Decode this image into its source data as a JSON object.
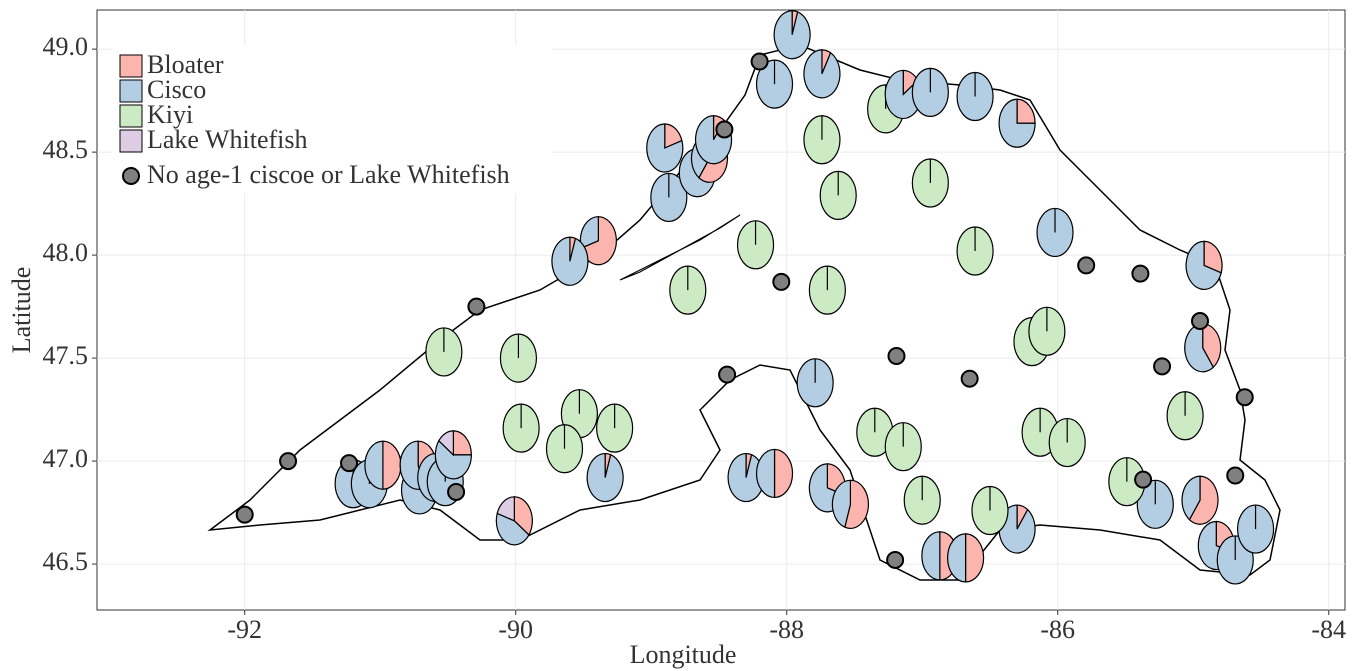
{
  "chart_data": {
    "type": "scatter-pie",
    "x_label": "Longitude",
    "y_label": "Latitude",
    "xlim": [
      -93.09,
      -83.88
    ],
    "ylim": [
      46.277,
      49.19
    ],
    "xticks": [
      -92,
      -90,
      -88,
      -86,
      -84
    ],
    "yticks": [
      46.5,
      {
        "value": 47,
        "label": "47.0"
      },
      47.5,
      {
        "value": 48,
        "label": "48.0"
      },
      48.5,
      {
        "value": 49,
        "label": "49.0"
      }
    ],
    "grid": true,
    "series": [
      {
        "name": "Bloater",
        "color": "#fbb4ae"
      },
      {
        "name": "Cisco",
        "color": "#b3cde3"
      },
      {
        "name": "Kiyi",
        "color": "#ccebc5"
      },
      {
        "name": "Lake Whitefish",
        "color": "#decbe4"
      }
    ],
    "pies": [
      {
        "x": -88.09,
        "y": 48.83,
        "values": [
          0,
          100,
          0,
          0
        ]
      },
      {
        "x": -87.96,
        "y": 49.07,
        "values": [
          5,
          95,
          0,
          0
        ]
      },
      {
        "x": -87.74,
        "y": 48.88,
        "values": [
          8,
          92,
          0,
          0
        ]
      },
      {
        "x": -87.27,
        "y": 48.71,
        "values": [
          0,
          0,
          100,
          0
        ]
      },
      {
        "x": -87.14,
        "y": 48.78,
        "values": [
          15,
          85,
          0,
          0
        ]
      },
      {
        "x": -86.94,
        "y": 48.79,
        "values": [
          0,
          100,
          0,
          0
        ]
      },
      {
        "x": -86.61,
        "y": 48.77,
        "values": [
          0,
          100,
          0,
          0
        ]
      },
      {
        "x": -86.3,
        "y": 48.64,
        "values": [
          25,
          75,
          0,
          0
        ]
      },
      {
        "x": -88.9,
        "y": 48.52,
        "values": [
          20,
          80,
          0,
          0
        ]
      },
      {
        "x": -88.87,
        "y": 48.28,
        "values": [
          0,
          100,
          0,
          0
        ]
      },
      {
        "x": -88.66,
        "y": 48.4,
        "values": [
          0,
          100,
          0,
          0
        ]
      },
      {
        "x": -88.57,
        "y": 48.47,
        "values": [
          60,
          40,
          0,
          0
        ]
      },
      {
        "x": -88.54,
        "y": 48.56,
        "values": [
          10,
          90,
          0,
          0
        ]
      },
      {
        "x": -89.39,
        "y": 48.07,
        "values": [
          70,
          30,
          0,
          0
        ]
      },
      {
        "x": -89.6,
        "y": 47.97,
        "values": [
          5,
          95,
          0,
          0
        ]
      },
      {
        "x": -86.02,
        "y": 48.11,
        "values": [
          0,
          100,
          0,
          0
        ]
      },
      {
        "x": -84.92,
        "y": 47.95,
        "values": [
          30,
          70,
          0,
          0
        ]
      },
      {
        "x": -84.93,
        "y": 47.55,
        "values": [
          40,
          60,
          0,
          0
        ]
      },
      {
        "x": -87.79,
        "y": 47.38,
        "values": [
          0,
          100,
          0,
          0
        ]
      },
      {
        "x": -89.34,
        "y": 46.92,
        "values": [
          5,
          95,
          0,
          0
        ]
      },
      {
        "x": -88.3,
        "y": 46.92,
        "values": [
          5,
          95,
          0,
          0
        ]
      },
      {
        "x": -88.09,
        "y": 46.94,
        "values": [
          50,
          50,
          0,
          0
        ]
      },
      {
        "x": -87.7,
        "y": 46.87,
        "values": [
          30,
          70,
          0,
          0
        ]
      },
      {
        "x": -87.53,
        "y": 46.79,
        "values": [
          55,
          45,
          0,
          0
        ]
      },
      {
        "x": -86.87,
        "y": 46.54,
        "values": [
          50,
          50,
          0,
          0
        ]
      },
      {
        "x": -86.68,
        "y": 46.53,
        "values": [
          50,
          50,
          0,
          0
        ]
      },
      {
        "x": -86.3,
        "y": 46.67,
        "values": [
          10,
          90,
          0,
          0
        ]
      },
      {
        "x": -85.28,
        "y": 46.79,
        "values": [
          0,
          100,
          0,
          0
        ]
      },
      {
        "x": -84.95,
        "y": 46.81,
        "values": [
          60,
          40,
          0,
          0
        ]
      },
      {
        "x": -84.83,
        "y": 46.59,
        "values": [
          30,
          70,
          0,
          0
        ]
      },
      {
        "x": -84.69,
        "y": 46.52,
        "values": [
          0,
          100,
          0,
          0
        ]
      },
      {
        "x": -84.54,
        "y": 46.67,
        "values": [
          0,
          100,
          0,
          0
        ]
      },
      {
        "x": -90.01,
        "y": 46.71,
        "values": [
          35,
          45,
          0,
          20
        ]
      },
      {
        "x": -91.2,
        "y": 46.89,
        "values": [
          0,
          100,
          0,
          0
        ]
      },
      {
        "x": -91.08,
        "y": 46.89,
        "values": [
          10,
          90,
          0,
          0
        ]
      },
      {
        "x": -90.98,
        "y": 46.98,
        "values": [
          50,
          50,
          0,
          0
        ]
      },
      {
        "x": -90.71,
        "y": 46.86,
        "values": [
          0,
          100,
          0,
          0
        ]
      },
      {
        "x": -90.72,
        "y": 46.98,
        "values": [
          45,
          55,
          0,
          0
        ]
      },
      {
        "x": -90.59,
        "y": 46.92,
        "values": [
          5,
          95,
          0,
          0
        ]
      },
      {
        "x": -90.52,
        "y": 46.9,
        "values": [
          0,
          100,
          0,
          0
        ]
      },
      {
        "x": -90.46,
        "y": 47.03,
        "values": [
          25,
          60,
          0,
          15
        ]
      },
      {
        "x": -87.74,
        "y": 48.56,
        "values": [
          0,
          0,
          100,
          0
        ]
      },
      {
        "x": -87.62,
        "y": 48.29,
        "values": [
          0,
          0,
          100,
          0
        ]
      },
      {
        "x": -86.94,
        "y": 48.35,
        "values": [
          0,
          0,
          100,
          0
        ]
      },
      {
        "x": -88.23,
        "y": 48.05,
        "values": [
          0,
          0,
          100,
          0
        ]
      },
      {
        "x": -86.61,
        "y": 48.02,
        "values": [
          0,
          0,
          100,
          0
        ]
      },
      {
        "x": -88.73,
        "y": 47.83,
        "values": [
          0,
          0,
          100,
          0
        ]
      },
      {
        "x": -87.7,
        "y": 47.83,
        "values": [
          0,
          0,
          100,
          0
        ]
      },
      {
        "x": -90.53,
        "y": 47.53,
        "values": [
          0,
          0,
          100,
          0
        ]
      },
      {
        "x": -89.98,
        "y": 47.5,
        "values": [
          0,
          0,
          100,
          0
        ]
      },
      {
        "x": -86.19,
        "y": 47.58,
        "values": [
          0,
          0,
          100,
          0
        ]
      },
      {
        "x": -86.08,
        "y": 47.63,
        "values": [
          0,
          0,
          100,
          0
        ]
      },
      {
        "x": -89.96,
        "y": 47.16,
        "values": [
          0,
          0,
          100,
          0
        ]
      },
      {
        "x": -89.53,
        "y": 47.23,
        "values": [
          0,
          0,
          100,
          0
        ]
      },
      {
        "x": -89.27,
        "y": 47.16,
        "values": [
          0,
          0,
          100,
          0
        ]
      },
      {
        "x": -89.64,
        "y": 47.06,
        "values": [
          0,
          0,
          100,
          0
        ]
      },
      {
        "x": -87.35,
        "y": 47.14,
        "values": [
          0,
          0,
          100,
          0
        ]
      },
      {
        "x": -87.14,
        "y": 47.07,
        "values": [
          0,
          0,
          100,
          0
        ]
      },
      {
        "x": -87,
        "y": 46.81,
        "values": [
          0,
          0,
          100,
          0
        ]
      },
      {
        "x": -86.5,
        "y": 46.76,
        "values": [
          0,
          0,
          100,
          0
        ]
      },
      {
        "x": -86.13,
        "y": 47.14,
        "values": [
          0,
          0,
          100,
          0
        ]
      },
      {
        "x": -85.93,
        "y": 47.09,
        "values": [
          0,
          0,
          100,
          0
        ]
      },
      {
        "x": -85.49,
        "y": 46.9,
        "values": [
          0,
          0,
          100,
          0
        ]
      },
      {
        "x": -85.06,
        "y": 47.22,
        "values": [
          0,
          0,
          100,
          0
        ]
      }
    ],
    "empty_sites": {
      "name": "No age-1 ciscoe or Lake Whitefish",
      "color": "#808080",
      "x": [
        -88.2,
        -88.46,
        -90.29,
        -88.04,
        -87.19,
        -88.44,
        -85.79,
        -85.39,
        -84.95,
        -85.23,
        -84.62,
        -86.65,
        -91.68,
        -92,
        -87.2,
        -90.44,
        -91.23,
        -85.37,
        -84.69
      ],
      "y": [
        48.94,
        48.61,
        47.75,
        47.87,
        47.51,
        47.42,
        47.95,
        47.91,
        47.68,
        47.46,
        47.31,
        47.4,
        47,
        46.74,
        46.52,
        46.85,
        46.99,
        46.91,
        46.93
      ]
    }
  }
}
